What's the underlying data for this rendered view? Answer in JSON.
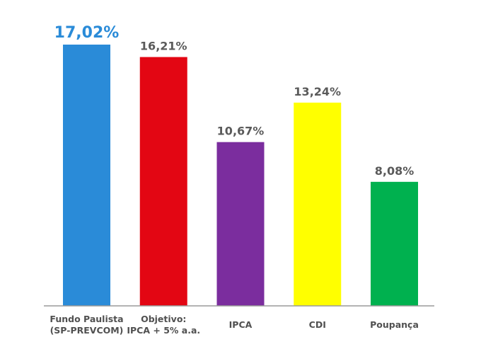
{
  "chart_data": {
    "type": "bar",
    "categories": [
      [
        "Fundo Paulista",
        "(SP-PREVCOM)"
      ],
      [
        "Objetivo:",
        "IPCA + 5% a.a."
      ],
      [
        "IPCA"
      ],
      [
        "CDI"
      ],
      [
        "Poupança"
      ]
    ],
    "values": [
      17.02,
      16.21,
      10.67,
      13.24,
      8.08
    ],
    "value_labels": [
      "17,02%",
      "16,21%",
      "10,67%",
      "13,24%",
      "8,08%"
    ],
    "colors": [
      "#2a8bd8",
      "#e30613",
      "#7b2d9e",
      "#ffff00",
      "#00b14f"
    ],
    "label_colors": [
      "#2a8bd8",
      "#5a5a5a",
      "#5a5a5a",
      "#5a5a5a",
      "#5a5a5a"
    ],
    "ylim": [
      0,
      17.02
    ],
    "grid": false,
    "legend": "none",
    "axis_color": "#9a9a9a"
  }
}
